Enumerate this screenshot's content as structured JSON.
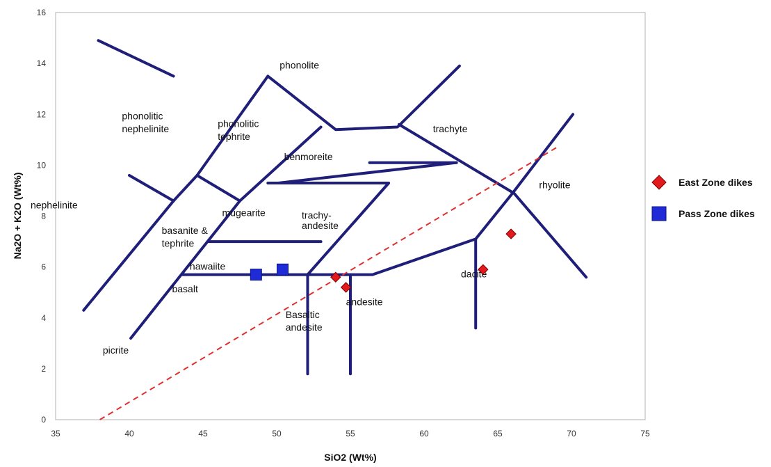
{
  "chart_data": {
    "type": "scatter",
    "xlabel": "SiO2 (Wt%)",
    "ylabel": "Na2O + K2O (Wt%)",
    "xlim": [
      35,
      75
    ],
    "ylim": [
      0,
      16
    ],
    "xticks": [
      "35",
      "40",
      "45",
      "50",
      "55",
      "60",
      "65",
      "70",
      "75"
    ],
    "yticks": [
      "0",
      "2",
      "4",
      "6",
      "8",
      "10",
      "12",
      "14",
      "16"
    ],
    "grid": false,
    "legend_position": "right",
    "boundary_color": "#1f1f7a",
    "trend_line_color": "#e03030",
    "boundaries": [
      [
        [
          36.9,
          4.3
        ],
        [
          43.0,
          8.6
        ],
        [
          44.6,
          9.6
        ],
        [
          49.4,
          13.5
        ],
        [
          54.0,
          11.4
        ],
        [
          58.2,
          11.5
        ],
        [
          62.4,
          13.9
        ]
      ],
      [
        [
          40.0,
          9.6
        ],
        [
          43.0,
          8.6
        ]
      ],
      [
        [
          37.9,
          14.9
        ],
        [
          43.0,
          13.5
        ]
      ],
      [
        [
          44.6,
          9.6
        ],
        [
          47.5,
          8.6
        ],
        [
          53.0,
          11.5
        ]
      ],
      [
        [
          40.1,
          3.2
        ],
        [
          47.5,
          8.6
        ]
      ],
      [
        [
          50.1,
          9.3
        ],
        [
          62.2,
          10.1
        ]
      ],
      [
        [
          58.3,
          11.6
        ],
        [
          66.1,
          8.9
        ],
        [
          71.0,
          5.6
        ]
      ],
      [
        [
          43.6,
          5.7
        ],
        [
          56.5,
          5.7
        ],
        [
          63.5,
          7.1
        ],
        [
          66.0,
          8.9
        ],
        [
          70.1,
          12.0
        ]
      ],
      [
        [
          45.4,
          7.0
        ],
        [
          53.0,
          7.0
        ]
      ],
      [
        [
          49.4,
          9.3
        ],
        [
          57.6,
          9.3
        ],
        [
          52.1,
          5.7
        ],
        [
          52.1,
          1.8
        ]
      ],
      [
        [
          55.0,
          5.7
        ],
        [
          55.0,
          1.8
        ]
      ],
      [
        [
          63.5,
          7.1
        ],
        [
          63.5,
          3.6
        ]
      ],
      [
        [
          56.3,
          10.1
        ],
        [
          62.2,
          10.1
        ]
      ]
    ],
    "trend_line": [
      [
        38.0,
        0.0
      ],
      [
        69.0,
        10.7
      ]
    ],
    "fields": [
      {
        "label": "phonolite",
        "x": 50.2,
        "y": 13.8
      },
      {
        "label": "phonolitic",
        "x": 39.5,
        "y": 11.8
      },
      {
        "label": "nephelinite",
        "x": 39.5,
        "y": 11.3
      },
      {
        "label": "phonolitic",
        "x": 46.0,
        "y": 11.5
      },
      {
        "label": "tephrite",
        "x": 46.0,
        "y": 11.0
      },
      {
        "label": "trachyte",
        "x": 60.6,
        "y": 11.3
      },
      {
        "label": "benmoreite",
        "x": 50.5,
        "y": 10.2
      },
      {
        "label": "rhyolite",
        "x": 67.8,
        "y": 9.1
      },
      {
        "label": "nephelinite",
        "x": 33.3,
        "y": 8.3
      },
      {
        "label": "mugearite",
        "x": 46.3,
        "y": 8.0
      },
      {
        "label": "trachy-",
        "x": 51.7,
        "y": 7.9
      },
      {
        "label": "andesite",
        "x": 51.7,
        "y": 7.5
      },
      {
        "label": "basanite &",
        "x": 42.2,
        "y": 7.3
      },
      {
        "label": "tephrite",
        "x": 42.2,
        "y": 6.8
      },
      {
        "label": "hawaiite",
        "x": 44.1,
        "y": 5.9
      },
      {
        "label": "basalt",
        "x": 42.9,
        "y": 5.0
      },
      {
        "label": "andesite",
        "x": 54.7,
        "y": 4.5
      },
      {
        "label": "dacite",
        "x": 62.5,
        "y": 5.6
      },
      {
        "label": "Basaltic",
        "x": 50.6,
        "y": 4.0
      },
      {
        "label": "andesite",
        "x": 50.6,
        "y": 3.5
      },
      {
        "label": "picrite",
        "x": 38.2,
        "y": 2.6
      }
    ],
    "series": [
      {
        "name": "East Zone dikes",
        "marker": "diamond",
        "color": "#e31a1c",
        "points": [
          [
            54.0,
            5.6
          ],
          [
            54.7,
            5.2
          ],
          [
            64.0,
            5.9
          ],
          [
            65.9,
            7.3
          ]
        ]
      },
      {
        "name": "Pass Zone dikes",
        "marker": "square",
        "color": "#1f2bd6",
        "points": [
          [
            48.6,
            5.7
          ],
          [
            50.4,
            5.9
          ]
        ]
      }
    ]
  }
}
